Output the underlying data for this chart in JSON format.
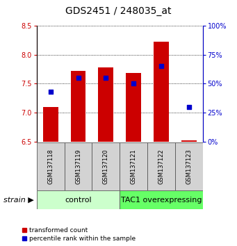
{
  "title": "GDS2451 / 248035_at",
  "samples": [
    "GSM137118",
    "GSM137119",
    "GSM137120",
    "GSM137121",
    "GSM137122",
    "GSM137123"
  ],
  "transformed_counts": [
    7.1,
    7.72,
    7.78,
    7.68,
    8.22,
    6.52
  ],
  "percentile_ranks": [
    43,
    55,
    55,
    50,
    65,
    30
  ],
  "bar_bottom": 6.5,
  "ylim_left": [
    6.5,
    8.5
  ],
  "ylim_right": [
    0,
    100
  ],
  "yticks_left": [
    6.5,
    7.0,
    7.5,
    8.0,
    8.5
  ],
  "yticks_right": [
    0,
    25,
    50,
    75,
    100
  ],
  "bar_color": "#cc0000",
  "dot_color": "#0000cc",
  "bar_width": 0.55,
  "groups": [
    {
      "label": "control",
      "color_light": "#ccffcc",
      "color_dark": "#ccffcc",
      "start": 0,
      "end": 2
    },
    {
      "label": "TAC1 overexpressing",
      "color_light": "#66ff66",
      "color_dark": "#66ff66",
      "start": 3,
      "end": 5
    }
  ],
  "legend_red_label": "transformed count",
  "legend_blue_label": "percentile rank within the sample",
  "strain_label": "strain ▶",
  "grid_style": "dotted",
  "grid_color": "#000000",
  "left_tick_color": "#cc0000",
  "right_tick_color": "#0000cc",
  "title_fontsize": 10,
  "tick_fontsize": 7,
  "sample_fontsize": 6,
  "group_label_fontsize": 8,
  "legend_fontsize": 6.5,
  "strain_fontsize": 8
}
